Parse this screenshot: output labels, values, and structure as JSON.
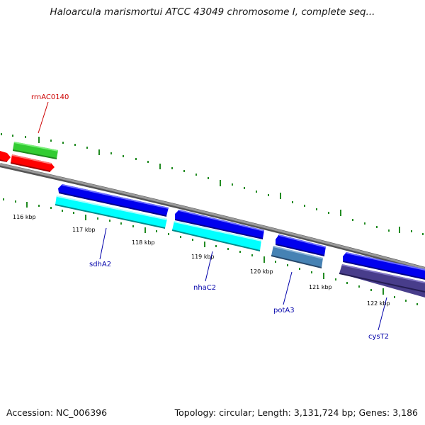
{
  "title": "Haloarcula marismortui ATCC 43049 chromosome I, complete seq...",
  "footer": {
    "accession": "Accession: NC_006396",
    "topology": "Topology: circular; Length: 3,131,724 bp; Genes: 3,186"
  },
  "scale_labels": [
    "116 kbp",
    "117 kbp",
    "118 kbp",
    "119 kbp",
    "120 kbp",
    "121 kbp",
    "122 kbp"
  ],
  "genes": [
    {
      "name": "rrnAC0140",
      "color": "#cc0000"
    },
    {
      "name": "sdhA2",
      "color": "#0000aa"
    },
    {
      "name": "nhaC2",
      "color": "#0000aa"
    },
    {
      "name": "potA3",
      "color": "#0000aa"
    },
    {
      "name": "cysT2",
      "color": "#0000aa"
    }
  ],
  "colors": {
    "backbone": "#808080",
    "ticks": "#006400",
    "red_feature": "#ff0000",
    "green_feature": "#33cc33",
    "blue_feature": "#0000ee",
    "cyan_feature": "#00ffff",
    "steelblue_feature": "#4682b4",
    "purple_feature": "#483d8b"
  }
}
